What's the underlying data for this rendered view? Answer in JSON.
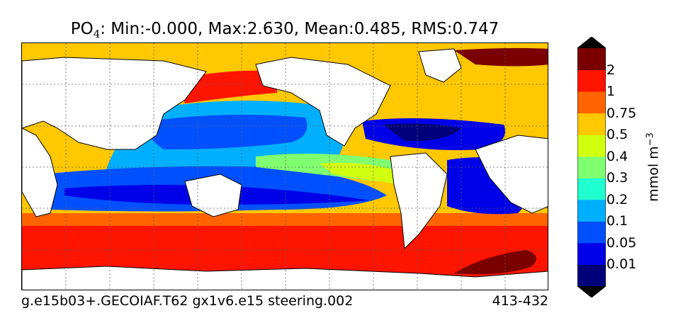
{
  "title": {
    "species": "PO",
    "species_sub": "4",
    "stats": ": Min:-0.000, Max:2.630, Mean:0.485, RMS:0.747"
  },
  "footer": {
    "run": "g.e15b03+.GECOIAF.T62 gx1v6.e15 steering.002",
    "years": "413-432"
  },
  "colorbar": {
    "unit_label": "mmol m",
    "unit_exp": "−3",
    "levels": [
      "0.01",
      "0.05",
      "0.1",
      "0.2",
      "0.3",
      "0.4",
      "0.5",
      "0.75",
      "1",
      "2"
    ],
    "colors": [
      "#00007a",
      "#0000e8",
      "#0050ff",
      "#00b0ff",
      "#20ffd0",
      "#80ff70",
      "#d2ff10",
      "#ffc800",
      "#ff6400",
      "#ff1400",
      "#7a0000"
    ],
    "extend": "both"
  },
  "colors": {
    "land": "#ffffff",
    "coast": "#000000",
    "grid": "#606060"
  }
}
